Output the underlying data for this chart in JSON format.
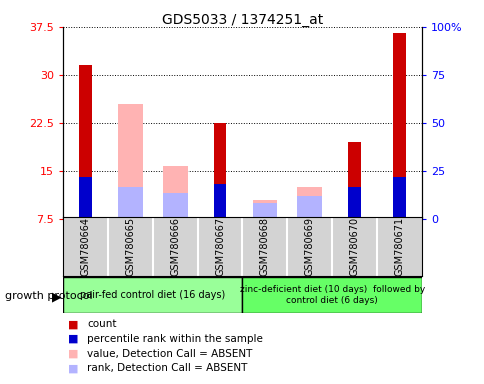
{
  "title": "GDS5033 / 1374251_at",
  "samples": [
    "GSM780664",
    "GSM780665",
    "GSM780666",
    "GSM780667",
    "GSM780668",
    "GSM780669",
    "GSM780670",
    "GSM780671"
  ],
  "count_values": [
    31.5,
    null,
    null,
    22.5,
    null,
    null,
    19.5,
    36.5
  ],
  "absent_value_values": [
    null,
    25.5,
    15.8,
    null,
    10.5,
    12.5,
    null,
    null
  ],
  "percentile_rank": [
    14.0,
    null,
    null,
    13.0,
    null,
    null,
    12.5,
    14.0
  ],
  "absent_rank_values": [
    null,
    12.5,
    11.5,
    null,
    10.0,
    11.0,
    null,
    null
  ],
  "ylim": [
    7.5,
    37.5
  ],
  "yticks": [
    7.5,
    15.0,
    22.5,
    30.0,
    37.5
  ],
  "ytick_labels": [
    "7.5",
    "15",
    "22.5",
    "30",
    "37.5"
  ],
  "right_yticks": [
    0,
    25,
    50,
    75,
    100
  ],
  "right_ytick_labels": [
    "0",
    "25",
    "50",
    "75",
    "100%"
  ],
  "group1_label": "pair-fed control diet (16 days)",
  "group2_label": "zinc-deficient diet (10 days)  followed by\ncontrol diet (6 days)",
  "group1_samples": [
    0,
    1,
    2,
    3
  ],
  "group2_samples": [
    4,
    5,
    6,
    7
  ],
  "growth_protocol_label": "growth protocol",
  "bar_color_count": "#cc0000",
  "bar_color_absent_value": "#ffb3b3",
  "bar_color_rank": "#0000cc",
  "bar_color_absent_rank": "#b3b3ff",
  "group1_color": "#99ff99",
  "group2_color": "#66ff66",
  "bg_color": "#d3d3d3",
  "legend_items": [
    {
      "color": "#cc0000",
      "label": "count"
    },
    {
      "color": "#0000cc",
      "label": "percentile rank within the sample"
    },
    {
      "color": "#ffb3b3",
      "label": "value, Detection Call = ABSENT"
    },
    {
      "color": "#b3b3ff",
      "label": "rank, Detection Call = ABSENT"
    }
  ]
}
